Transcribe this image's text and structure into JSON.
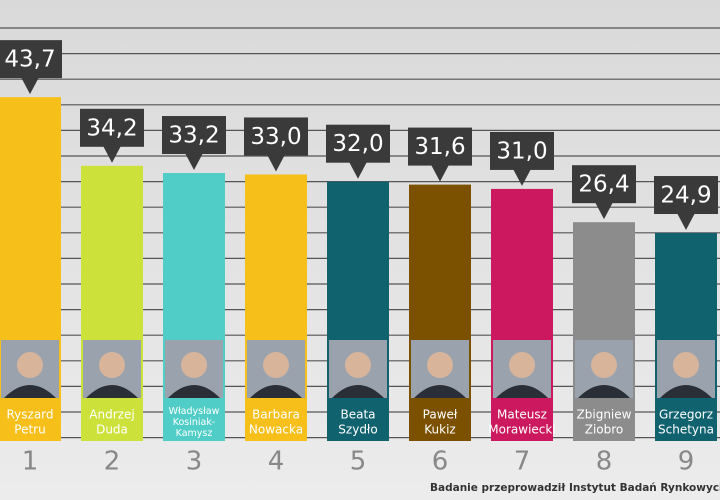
{
  "chart_data": {
    "type": "bar",
    "categories": [
      [
        "Ryszard",
        "Petru"
      ],
      [
        "Andrzej",
        "Duda"
      ],
      [
        "Władysław",
        "Kosiniak-",
        "Kamysz"
      ],
      [
        "Barbara",
        "Nowacka"
      ],
      [
        "Beata",
        "Szydło"
      ],
      [
        "Paweł",
        "Kukiz"
      ],
      [
        "Mateusz",
        "Morawiecki"
      ],
      [
        "Zbigniew",
        "Ziobro"
      ],
      [
        "Grzegorz",
        "Schetyna"
      ]
    ],
    "values": [
      43.7,
      34.2,
      33.2,
      33.0,
      32.0,
      31.6,
      31.0,
      26.4,
      24.9
    ],
    "value_labels": [
      "43,7",
      "34,2",
      "33,2",
      "33,0",
      "32,0",
      "31,6",
      "31,0",
      "26,4",
      "24,9"
    ],
    "colors": [
      "#f6bf1a",
      "#cce23b",
      "#4fcdc6",
      "#f6bf1a",
      "#11626f",
      "#7b5100",
      "#cc185e",
      "#8c8c8c",
      "#11626f"
    ],
    "ranks": [
      "1",
      "2",
      "3",
      "4",
      "5",
      "6",
      "7",
      "8",
      "9"
    ],
    "source": "Badanie przeprowadził Instytut Badań Rynkowych i Społec",
    "ylim": [
      0,
      57
    ],
    "grid": true
  }
}
